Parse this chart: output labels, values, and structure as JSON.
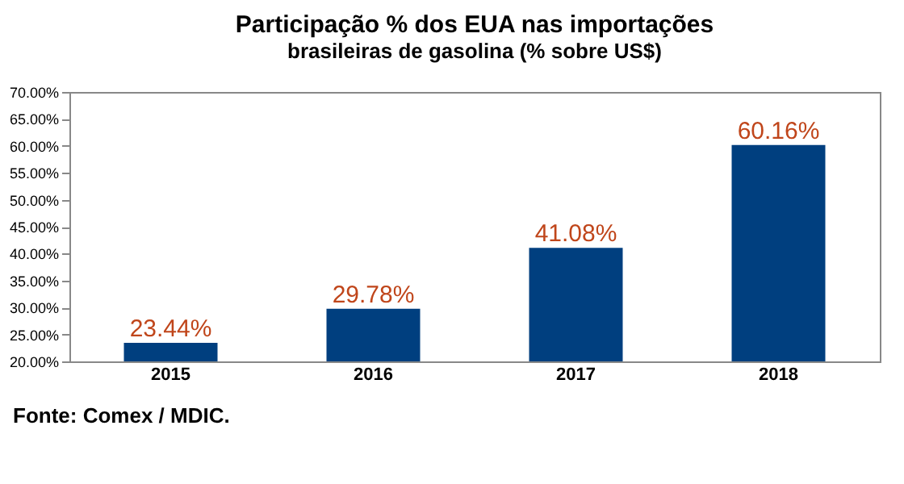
{
  "chart_data": {
    "type": "bar",
    "title": "Participação % dos EUA nas importações",
    "subtitle": "brasileiras de gasolina (% sobre US$)",
    "categories": [
      "2015",
      "2016",
      "2017",
      "2018"
    ],
    "values": [
      23.44,
      29.78,
      41.08,
      60.16
    ],
    "value_labels": [
      "23.44%",
      "29.78%",
      "41.08%",
      "60.16%"
    ],
    "color": "#003f7f",
    "ylim": [
      20,
      70
    ],
    "yticks": [
      {
        "value": 20,
        "label": "20.00%"
      },
      {
        "value": 25,
        "label": "25.00%"
      },
      {
        "value": 30,
        "label": "30.00%"
      },
      {
        "value": 35,
        "label": "35.00%"
      },
      {
        "value": 40,
        "label": "40.00%"
      },
      {
        "value": 45,
        "label": "45.00%"
      },
      {
        "value": 50,
        "label": "50.00%"
      },
      {
        "value": 55,
        "label": "55.00%"
      },
      {
        "value": 60,
        "label": "60.00%"
      },
      {
        "value": 65,
        "label": "65.00%"
      },
      {
        "value": 70,
        "label": "70.00%"
      }
    ],
    "grid": false,
    "annotations": [
      "Fonte: Comex / MDIC."
    ]
  }
}
